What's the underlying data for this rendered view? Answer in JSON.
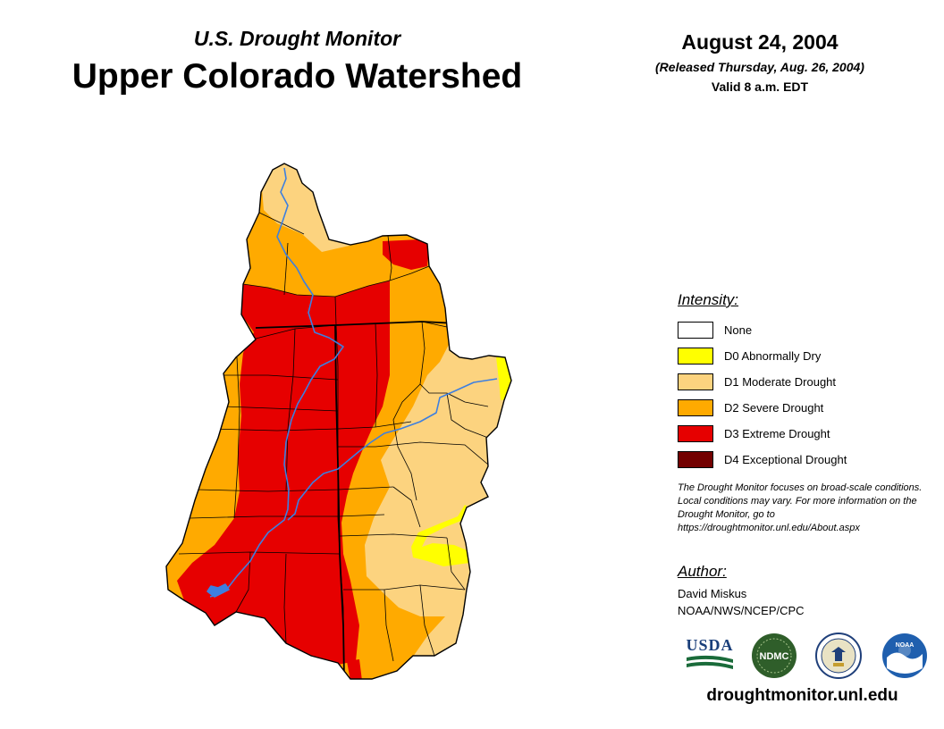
{
  "header": {
    "subtitle": "U.S. Drought Monitor",
    "title": "Upper Colorado Watershed",
    "date": "August 24, 2004",
    "released": "(Released Thursday, Aug. 26, 2004)",
    "valid": "Valid 8 a.m. EDT"
  },
  "legend": {
    "title": "Intensity:",
    "items": [
      {
        "label": "None",
        "color": "#ffffff"
      },
      {
        "label": "D0 Abnormally Dry",
        "color": "#ffff00"
      },
      {
        "label": "D1 Moderate Drought",
        "color": "#fcd37f"
      },
      {
        "label": "D2 Severe Drought",
        "color": "#ffaa00"
      },
      {
        "label": "D3 Extreme Drought",
        "color": "#e60000"
      },
      {
        "label": "D4 Exceptional Drought",
        "color": "#730000"
      }
    ]
  },
  "note": "The Drought Monitor focuses on broad-scale conditions. Local conditions may vary. For more information on the Drought Monitor, go to https://droughtmonitor.unl.edu/About.aspx",
  "author": {
    "title": "Author:",
    "name": "David Miskus",
    "org": "NOAA/NWS/NCEP/CPC"
  },
  "logos": {
    "usda": "USDA",
    "ndmc": "NDMC",
    "noaa": "NOAA"
  },
  "url": "droughtmonitor.unl.edu",
  "map": {
    "river_color": "#3d7fe0",
    "boundary_color": "#000000"
  }
}
